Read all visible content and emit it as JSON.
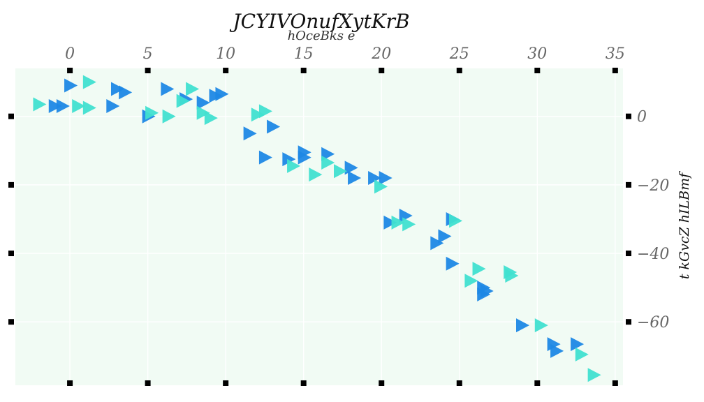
{
  "chart_data": {
    "type": "scatter",
    "title": "JCYIVOnufXytKrB",
    "subtitle": "hOceBks  e",
    "xlabel": "",
    "ylabel": "t kGvcZ hILBmf",
    "x_ticks": [
      0,
      5,
      10,
      15,
      20,
      25,
      30,
      35
    ],
    "y_ticks": [
      0,
      -20,
      -40,
      -60
    ],
    "y_tick_labels": [
      "0",
      "−20",
      "−40",
      "−60"
    ],
    "xlim": [
      -3.5,
      35.5
    ],
    "ylim": [
      -78.5,
      14
    ],
    "x_axis_position": "top",
    "y_axis_position": "right",
    "grid": true,
    "background_color": "#f1fbf4",
    "marker": "triangle-right",
    "series": [
      {
        "color": "#1e88e5",
        "points": [
          [
            0,
            9
          ],
          [
            3,
            8
          ],
          [
            3.5,
            7
          ],
          [
            6.2,
            8
          ],
          [
            7.4,
            5
          ],
          [
            8.5,
            4
          ],
          [
            9.3,
            6
          ],
          [
            9.7,
            6.5
          ],
          [
            -1,
            3
          ],
          [
            -0.5,
            3
          ],
          [
            2.7,
            3
          ],
          [
            5,
            0
          ],
          [
            11.5,
            -5
          ],
          [
            13,
            -3
          ],
          [
            12.5,
            -12
          ],
          [
            14,
            -12.5
          ],
          [
            15,
            -10.5
          ],
          [
            15,
            -12
          ],
          [
            16.5,
            -11
          ],
          [
            18,
            -15
          ],
          [
            18.2,
            -18
          ],
          [
            19.5,
            -18
          ],
          [
            20.2,
            -18
          ],
          [
            20.5,
            -31
          ],
          [
            21.5,
            -29
          ],
          [
            23.5,
            -37
          ],
          [
            24,
            -35
          ],
          [
            24.5,
            -30
          ],
          [
            24.5,
            -43
          ],
          [
            26.5,
            -50
          ],
          [
            26.7,
            -51
          ],
          [
            26.5,
            -52
          ],
          [
            29,
            -61
          ],
          [
            31,
            -66.5
          ],
          [
            31.2,
            -68.5
          ],
          [
            32.5,
            -66.5
          ]
        ]
      },
      {
        "color": "#40e0d0",
        "points": [
          [
            1.2,
            10
          ],
          [
            7.8,
            8
          ],
          [
            7.2,
            4.5
          ],
          [
            -2,
            3.5
          ],
          [
            0.5,
            3
          ],
          [
            1.2,
            2.5
          ],
          [
            5.2,
            1
          ],
          [
            6.3,
            0
          ],
          [
            8.5,
            1
          ],
          [
            9,
            -0.5
          ],
          [
            12,
            0.5
          ],
          [
            12.5,
            1.5
          ],
          [
            14.3,
            -14.5
          ],
          [
            15.7,
            -17
          ],
          [
            16.5,
            -13.5
          ],
          [
            17.3,
            -16
          ],
          [
            19.9,
            -20.5
          ],
          [
            21,
            -31
          ],
          [
            21.7,
            -31.5
          ],
          [
            24.7,
            -30.5
          ],
          [
            26.2,
            -44.5
          ],
          [
            25.7,
            -48
          ],
          [
            28.2,
            -45.5
          ],
          [
            28.3,
            -46.5
          ],
          [
            30.2,
            -61
          ],
          [
            32.8,
            -69.5
          ],
          [
            33.6,
            -75.5
          ]
        ]
      }
    ]
  }
}
